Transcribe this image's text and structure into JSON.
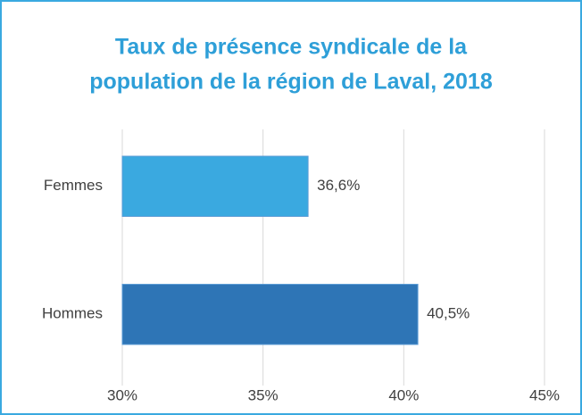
{
  "chart_data": {
    "type": "bar",
    "orientation": "horizontal",
    "title": [
      "Taux de présence syndicale de la",
      "population de la région de Laval, 2018"
    ],
    "categories": [
      "Femmes",
      "Hommes"
    ],
    "values": [
      36.6,
      40.5
    ],
    "value_labels": [
      "36,6%",
      "40,5%"
    ],
    "colors": [
      "#3aa9e0",
      "#2e75b6"
    ],
    "xlim": [
      30,
      45
    ],
    "xticks": [
      {
        "value": 30,
        "label": "30%"
      },
      {
        "value": 35,
        "label": "35%"
      },
      {
        "value": 40,
        "label": "40%"
      },
      {
        "value": 45,
        "label": "45%"
      }
    ],
    "grid": true
  }
}
